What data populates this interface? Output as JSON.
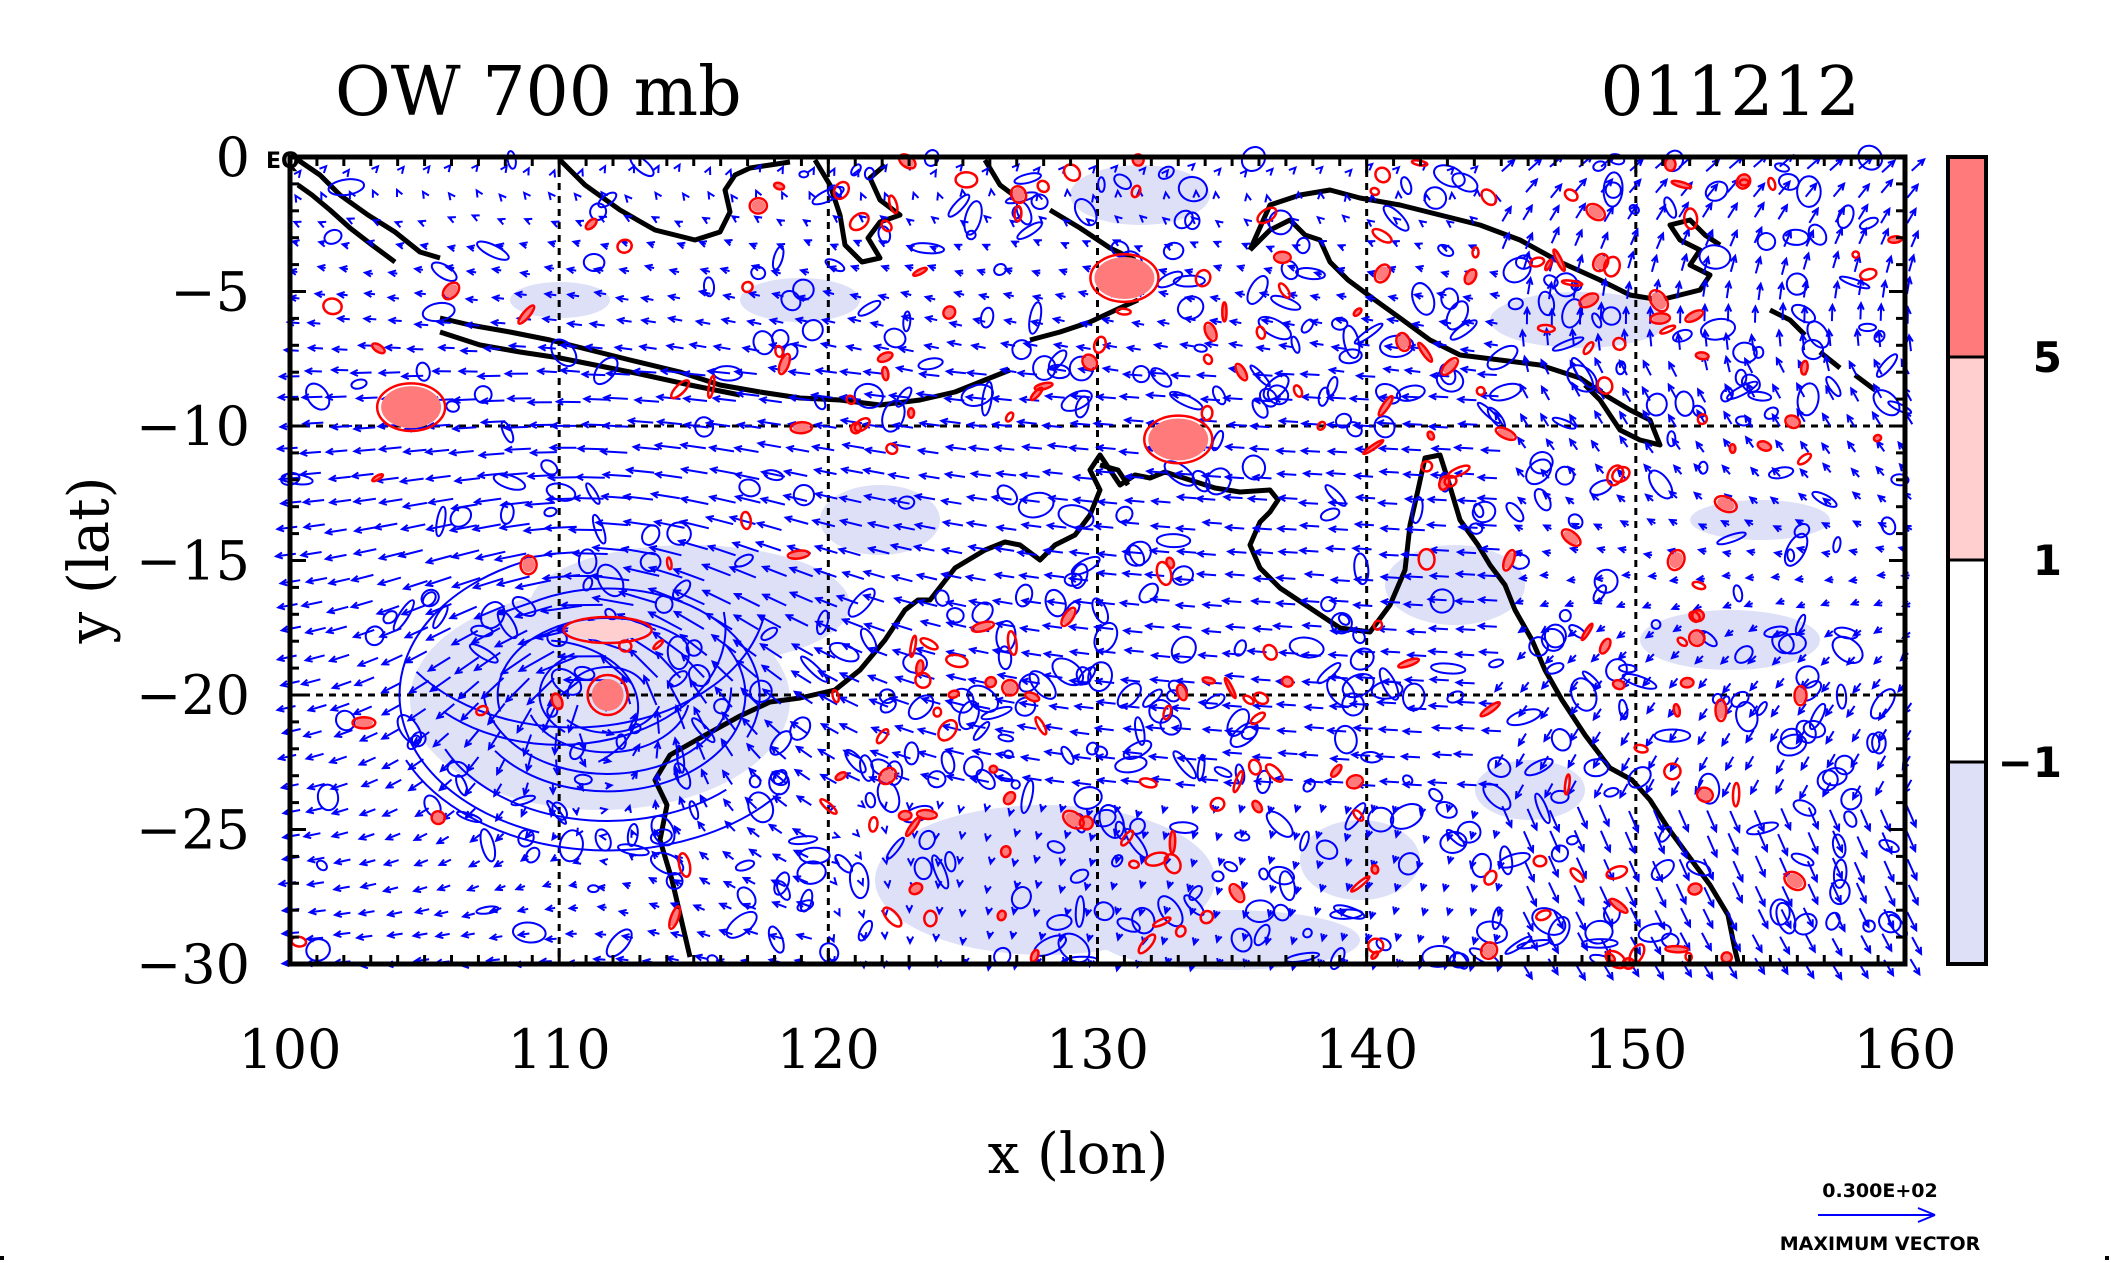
{
  "title_left": "OW 700 mb",
  "title_right": "011212",
  "corner_label": "EQ",
  "map_data": {
    "type": "map",
    "projection": "cylindrical-equidistant",
    "xlabel": "x (lon)",
    "ylabel": "y (lat)",
    "xlim": [
      100,
      160
    ],
    "ylim": [
      -30,
      0
    ],
    "xticks": [
      100,
      110,
      120,
      130,
      140,
      150,
      160
    ],
    "yticks": [
      0,
      -5,
      -10,
      -15,
      -20,
      -25,
      -30
    ],
    "xtick_labels": [
      "100",
      "110",
      "120",
      "130",
      "140",
      "150",
      "160"
    ],
    "ytick_labels": [
      "0",
      "−5",
      "−10",
      "−15",
      "−20",
      "−25",
      "−30"
    ],
    "gridlines_lon": [
      110,
      120,
      130,
      140,
      150
    ],
    "gridlines_lat": [
      -10,
      -20
    ],
    "grid": true,
    "colors": {
      "positive_fill_strong": "#ff7a7a",
      "positive_fill_weak": "#ffcfcf",
      "negative_fill": "#dde0f7",
      "positive_contour": "#ff0000",
      "negative_contour": "#0000ff",
      "wind_vectors": "#0000ff",
      "coastline": "#000000"
    },
    "colorbar": {
      "levels": [
        "5",
        "1",
        "−1"
      ],
      "fills": [
        "#ff7a7a",
        "#ffcfcf",
        "#ffffff",
        "#dde0f7"
      ]
    },
    "vector_legend": {
      "value": "0.300E+02",
      "label": "MAXIMUM VECTOR"
    },
    "features": [
      {
        "name": "positive OW center",
        "lon": 111.8,
        "lat": -20.0
      },
      {
        "name": "positive OW cluster",
        "lon": 133.0,
        "lat": -10.5
      },
      {
        "name": "positive OW cluster",
        "lon": 131.0,
        "lat": -4.5
      },
      {
        "name": "positive OW cluster",
        "lon": 104.5,
        "lat": -9.3
      }
    ]
  }
}
